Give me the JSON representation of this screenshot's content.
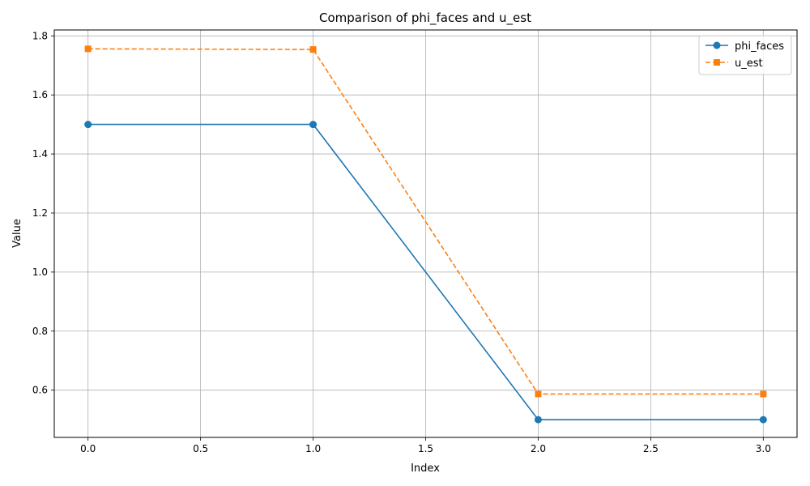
{
  "chart_data": {
    "type": "line",
    "title": "Comparison of phi_faces and u_est",
    "xlabel": "Index",
    "ylabel": "Value",
    "xlim": [
      -0.15,
      3.15
    ],
    "ylim": [
      0.44,
      1.82
    ],
    "xticks": [
      0.0,
      0.5,
      1.0,
      1.5,
      2.0,
      2.5,
      3.0
    ],
    "xtick_labels": [
      "0.0",
      "0.5",
      "1.0",
      "1.5",
      "2.0",
      "2.5",
      "3.0"
    ],
    "yticks": [
      0.6,
      0.8,
      1.0,
      1.2,
      1.4,
      1.6,
      1.8
    ],
    "ytick_labels": [
      "0.6",
      "0.8",
      "1.0",
      "1.2",
      "1.4",
      "1.6",
      "1.8"
    ],
    "grid": true,
    "legend_position": "top-right",
    "x": [
      0,
      1,
      2,
      3
    ],
    "series": [
      {
        "name": "phi_faces",
        "values": [
          1.5,
          1.5,
          0.5,
          0.5
        ],
        "color": "#1f77b4",
        "marker": "circle",
        "line_style": "solid"
      },
      {
        "name": "u_est",
        "values": [
          1.756,
          1.754,
          0.587,
          0.587
        ],
        "color": "#ff7f0e",
        "marker": "square",
        "line_style": "dashed"
      }
    ]
  }
}
